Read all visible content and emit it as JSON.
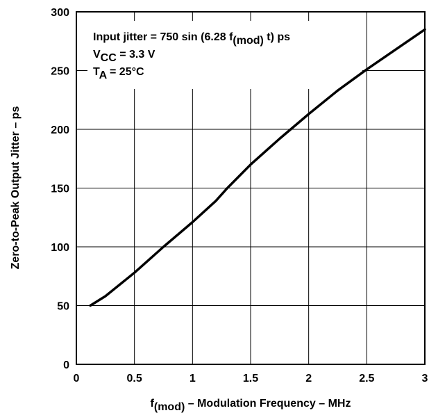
{
  "chart_data": {
    "type": "line",
    "xlabel": {
      "prefix": "f",
      "sub": "(mod)",
      "rest": " – Modulation Frequency – MHz"
    },
    "ylabel": "Zero-to-Peak Output Jitter – ps",
    "xlim": [
      0,
      3
    ],
    "ylim": [
      0,
      300
    ],
    "xticks": [
      0,
      0.5,
      1,
      1.5,
      2,
      2.5,
      3
    ],
    "xtick_labels": [
      "0",
      "0.5",
      "1",
      "1.5",
      "2",
      "2.5",
      "3"
    ],
    "yticks": [
      0,
      50,
      100,
      150,
      200,
      250,
      300
    ],
    "ytick_labels": [
      "0",
      "50",
      "100",
      "150",
      "200",
      "250",
      "300"
    ],
    "grid": true,
    "annotations": {
      "line1": {
        "pre": "Input jitter = 750 sin (6.28 f",
        "sub": "(mod)",
        "post": " t) ps"
      },
      "line2": {
        "pre": "V",
        "sub": "CC",
        "post": " = 3.3 V"
      },
      "line3": {
        "pre": "T",
        "sub": "A",
        "post": " = 25°C"
      }
    },
    "series": [
      {
        "x": [
          0.12,
          0.25,
          0.5,
          0.75,
          1.0,
          1.2,
          1.3,
          1.5,
          1.75,
          2.0,
          2.25,
          2.5,
          2.75,
          3.0
        ],
        "y": [
          50,
          58,
          78,
          100,
          121,
          139,
          150,
          170,
          192,
          213,
          233,
          251,
          268,
          285
        ]
      }
    ]
  }
}
